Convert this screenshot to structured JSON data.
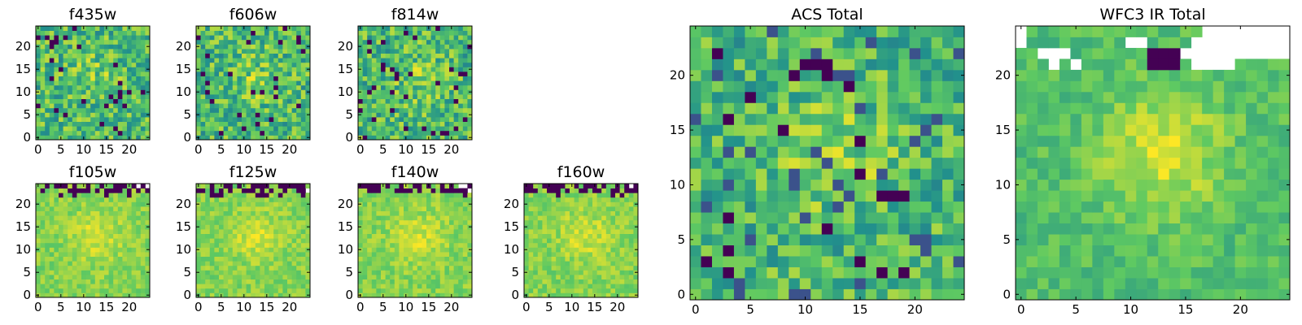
{
  "chart_data": [
    {
      "type": "heatmap",
      "title": "f435w",
      "size": 25,
      "xticks": [
        0,
        5,
        10,
        15,
        20
      ],
      "yticks": [
        0,
        5,
        10,
        15,
        20
      ],
      "mode": "noise",
      "seed": 11
    },
    {
      "type": "heatmap",
      "title": "f606w",
      "size": 25,
      "xticks": [
        0,
        5,
        10,
        15,
        20
      ],
      "yticks": [
        0,
        5,
        10,
        15,
        20
      ],
      "mode": "noise",
      "seed": 23
    },
    {
      "type": "heatmap",
      "title": "f814w",
      "size": 25,
      "xticks": [
        0,
        5,
        10,
        15,
        20
      ],
      "yticks": [
        0,
        5,
        10,
        15,
        20
      ],
      "mode": "noise",
      "seed": 37
    },
    {
      "type": "heatmap",
      "title": "f105w",
      "size": 25,
      "xticks": [
        0,
        5,
        10,
        15,
        20
      ],
      "yticks": [
        0,
        5,
        10,
        15,
        20
      ],
      "mode": "ir",
      "seed": 41
    },
    {
      "type": "heatmap",
      "title": "f125w",
      "size": 25,
      "xticks": [
        0,
        5,
        10,
        15,
        20
      ],
      "yticks": [
        0,
        5,
        10,
        15,
        20
      ],
      "mode": "ir",
      "seed": 53
    },
    {
      "type": "heatmap",
      "title": "f140w",
      "size": 25,
      "xticks": [
        0,
        5,
        10,
        15,
        20
      ],
      "yticks": [
        0,
        5,
        10,
        15,
        20
      ],
      "mode": "ir",
      "seed": 67
    },
    {
      "type": "heatmap",
      "title": "f160w",
      "size": 25,
      "xticks": [
        0,
        5,
        10,
        15,
        20
      ],
      "yticks": [
        0,
        5,
        10,
        15,
        20
      ],
      "mode": "ir",
      "seed": 79
    },
    {
      "type": "heatmap",
      "title": "ACS Total",
      "size": 25,
      "xticks": [
        0,
        5,
        10,
        15,
        20
      ],
      "yticks": [
        0,
        5,
        10,
        15,
        20
      ],
      "mode": "acs",
      "seed": 97
    },
    {
      "type": "heatmap",
      "title": "WFC3 IR Total",
      "size": 25,
      "xticks": [
        0,
        5,
        10,
        15,
        20
      ],
      "yticks": [
        0,
        5,
        10,
        15,
        20
      ],
      "mode": "irtotal",
      "seed": 103
    }
  ],
  "colors": {
    "viridis_stops": [
      "#440154",
      "#3b528b",
      "#21918c",
      "#5ec962",
      "#fde725"
    ],
    "masked": "#ffffff"
  }
}
